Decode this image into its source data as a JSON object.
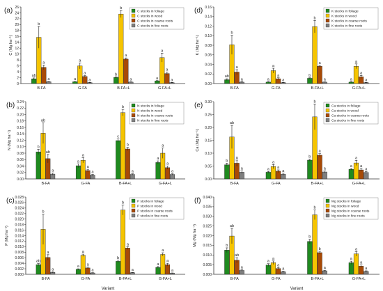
{
  "figure": {
    "x_axis_label": "Variant",
    "categories": [
      "B-FA",
      "G-FA",
      "B-FA+L",
      "G-FA+L"
    ],
    "series_colors": [
      "#1f8a1f",
      "#f5c400",
      "#a84a06",
      "#7f7f7f"
    ]
  },
  "chart_data": [
    {
      "type": "bar",
      "panel": "(a)",
      "ylabel": "C (Mg ha⁻¹)",
      "ylim": [
        0,
        26
      ],
      "ytick_step": 2,
      "tick_decimals": 0,
      "categories": [
        "B-FA",
        "G-FA",
        "B-FA+L",
        "G-FA+L"
      ],
      "series": [
        {
          "name": "C stocks in foliage",
          "values": [
            1.6,
            0.6,
            2.1,
            0.9
          ],
          "errors": [
            0.3,
            0.1,
            0.2,
            0.1
          ],
          "letters": [
            "ab",
            "a",
            "b",
            "a"
          ]
        },
        {
          "name": "C stocks in wood",
          "values": [
            15.7,
            6.0,
            23.6,
            8.8
          ],
          "errors": [
            3.7,
            1.0,
            1.2,
            1.5
          ],
          "letters": [
            "b",
            "a",
            "b",
            "a"
          ]
        },
        {
          "name": "C stocks in coarse roots",
          "values": [
            5.5,
            2.4,
            8.3,
            3.4
          ],
          "errors": [
            0.8,
            0.3,
            0.4,
            0.5
          ],
          "letters": [
            "a",
            "a",
            "a",
            "a"
          ]
        },
        {
          "name": "C stocks in fine roots",
          "values": [
            0.6,
            0.3,
            0.5,
            0.3
          ],
          "errors": [
            0.1,
            0.1,
            0.1,
            0.1
          ],
          "letters": [
            "a",
            "a",
            "a",
            "a"
          ]
        }
      ]
    },
    {
      "type": "bar",
      "panel": "(d)",
      "ylabel": "K (Mg ha⁻¹)",
      "ylim": [
        0,
        0.16
      ],
      "ytick_step": 0.02,
      "tick_decimals": 2,
      "categories": [
        "B-FA",
        "G-FA",
        "B-FA+L",
        "G-FA+L"
      ],
      "series": [
        {
          "name": "K stocks in foliage",
          "values": [
            0.008,
            0.003,
            0.011,
            0.003
          ],
          "errors": [
            0.002,
            0.001,
            0.001,
            0.001
          ],
          "letters": [
            "ab",
            "a",
            "b",
            "a"
          ]
        },
        {
          "name": "K stocks in wood",
          "values": [
            0.081,
            0.027,
            0.119,
            0.036
          ],
          "errors": [
            0.02,
            0.005,
            0.013,
            0.005
          ],
          "letters": [
            "b",
            "a",
            "b",
            "a"
          ]
        },
        {
          "name": "K stocks in coarse roots",
          "values": [
            0.024,
            0.01,
            0.036,
            0.014
          ],
          "errors": [
            0.005,
            0.002,
            0.002,
            0.003
          ],
          "letters": [
            "a",
            "a",
            "a",
            "a"
          ]
        },
        {
          "name": "K stocks in fine roots",
          "values": [
            0.003,
            0.002,
            0.003,
            0.002
          ],
          "errors": [
            0.001,
            0.0005,
            0.0005,
            0.0005
          ],
          "letters": [
            "a",
            "a",
            "a",
            "a"
          ]
        }
      ]
    },
    {
      "type": "bar",
      "panel": "(b)",
      "ylabel": "N (Mg ha⁻¹)",
      "ylim": [
        0,
        0.24
      ],
      "ytick_step": 0.02,
      "tick_decimals": 2,
      "categories": [
        "B-FA",
        "G-FA",
        "B-FA+L",
        "G-FA+L"
      ],
      "series": [
        {
          "name": "N stocks in foliage",
          "values": [
            0.084,
            0.041,
            0.119,
            0.051
          ],
          "errors": [
            0.008,
            0.006,
            0.005,
            0.005
          ],
          "letters": [
            "b",
            "a",
            "c",
            "a"
          ]
        },
        {
          "name": "N stocks in wood",
          "values": [
            0.142,
            0.058,
            0.206,
            0.08
          ],
          "errors": [
            0.032,
            0.008,
            0.01,
            0.016
          ],
          "letters": [
            "ab",
            "a",
            "b",
            "a"
          ]
        },
        {
          "name": "N stocks in coarse roots",
          "values": [
            0.063,
            0.026,
            0.093,
            0.035
          ],
          "errors": [
            0.013,
            0.004,
            0.005,
            0.005
          ],
          "letters": [
            "ab",
            "a",
            "b",
            "a"
          ]
        },
        {
          "name": "N stocks in fine roots",
          "values": [
            0.015,
            0.012,
            0.014,
            0.014
          ],
          "errors": [
            0.003,
            0.002,
            0.002,
            0.002
          ],
          "letters": [
            "a",
            "a",
            "a",
            "a"
          ]
        }
      ]
    },
    {
      "type": "bar",
      "panel": "(e)",
      "ylabel": "Ca (Mg ha⁻¹)",
      "ylim": [
        0,
        0.3
      ],
      "ytick_step": 0.05,
      "tick_decimals": 2,
      "categories": [
        "B-FA",
        "G-FA",
        "B-FA+L",
        "G-FA+L"
      ],
      "series": [
        {
          "name": "Ca stocks in foliage",
          "values": [
            0.055,
            0.026,
            0.073,
            0.037
          ],
          "errors": [
            0.006,
            0.003,
            0.004,
            0.003
          ],
          "letters": [
            "b",
            "a",
            "b",
            "a"
          ]
        },
        {
          "name": "Ca stocks in wood",
          "values": [
            0.163,
            0.048,
            0.241,
            0.062
          ],
          "errors": [
            0.045,
            0.008,
            0.05,
            0.01
          ],
          "letters": [
            "ab",
            "a",
            "b",
            "a"
          ]
        },
        {
          "name": "Ca stocks in coarse roots",
          "values": [
            0.061,
            0.03,
            0.092,
            0.035
          ],
          "errors": [
            0.012,
            0.005,
            0.006,
            0.006
          ],
          "letters": [
            "a",
            "a",
            "a",
            "a"
          ]
        },
        {
          "name": "Ca stocks in fine roots",
          "values": [
            0.026,
            0.018,
            0.027,
            0.025
          ],
          "errors": [
            0.005,
            0.004,
            0.004,
            0.004
          ],
          "letters": [
            "a",
            "a",
            "a",
            "a"
          ]
        }
      ]
    },
    {
      "type": "bar",
      "panel": "(c)",
      "ylabel": "P (Mg ha⁻¹)",
      "ylim": [
        0,
        0.028
      ],
      "ytick_step": 0.002,
      "tick_decimals": 3,
      "categories": [
        "B-FA",
        "G-FA",
        "B-FA+L",
        "G-FA+L"
      ],
      "series": [
        {
          "name": "P stocks in foliage",
          "values": [
            0.0035,
            0.0018,
            0.0047,
            0.0025
          ],
          "errors": [
            0.0004,
            0.0002,
            0.0004,
            0.0003
          ],
          "letters": [
            "ab",
            "a",
            "b",
            "a"
          ]
        },
        {
          "name": "P stocks in wood",
          "values": [
            0.0163,
            0.0069,
            0.0233,
            0.0072
          ],
          "errors": [
            0.0055,
            0.0004,
            0.0018,
            0.0006
          ],
          "letters": [
            "b",
            "a",
            "b",
            "a"
          ]
        },
        {
          "name": "P stocks in coarse roots",
          "values": [
            0.0061,
            0.0023,
            0.0095,
            0.0035
          ],
          "errors": [
            0.001,
            0.0003,
            0.0005,
            0.0005
          ],
          "letters": [
            "a",
            "a",
            "a",
            "a"
          ]
        },
        {
          "name": "P stocks in fine roots",
          "values": [
            0.0007,
            0.0005,
            0.0006,
            0.0004
          ],
          "errors": [
            0.0002,
            0.0001,
            0.0001,
            0.0001
          ],
          "letters": [
            "a",
            "a",
            "a",
            "a"
          ]
        }
      ]
    },
    {
      "type": "bar",
      "panel": "(f)",
      "ylabel": "Mg (Mg ha⁻¹)",
      "ylim": [
        0,
        0.04
      ],
      "ytick_step": 0.005,
      "tick_decimals": 3,
      "categories": [
        "B-FA",
        "G-FA",
        "B-FA+L",
        "G-FA+L"
      ],
      "series": [
        {
          "name": "Mg stocks in foliage",
          "values": [
            0.0125,
            0.0048,
            0.017,
            0.006
          ],
          "errors": [
            0.0012,
            0.0007,
            0.0012,
            0.0008
          ],
          "letters": [
            "b",
            "a",
            "b",
            "a"
          ]
        },
        {
          "name": "Mg stocks in wood",
          "values": [
            0.0198,
            0.006,
            0.0308,
            0.0106
          ],
          "errors": [
            0.004,
            0.0009,
            0.0025,
            0.0012
          ],
          "letters": [
            "ab",
            "a",
            "b",
            "a"
          ]
        },
        {
          "name": "Mg stocks in coarse roots",
          "values": [
            0.0073,
            0.003,
            0.0112,
            0.0042
          ],
          "errors": [
            0.0013,
            0.0005,
            0.0007,
            0.0006
          ],
          "letters": [
            "ab",
            "a",
            "b",
            "a"
          ]
        },
        {
          "name": "Mg stocks in fine roots",
          "values": [
            0.002,
            0.0013,
            0.0018,
            0.0015
          ],
          "errors": [
            0.0004,
            0.0003,
            0.0003,
            0.0003
          ],
          "letters": [
            "a",
            "a",
            "a",
            "a"
          ]
        }
      ]
    }
  ]
}
